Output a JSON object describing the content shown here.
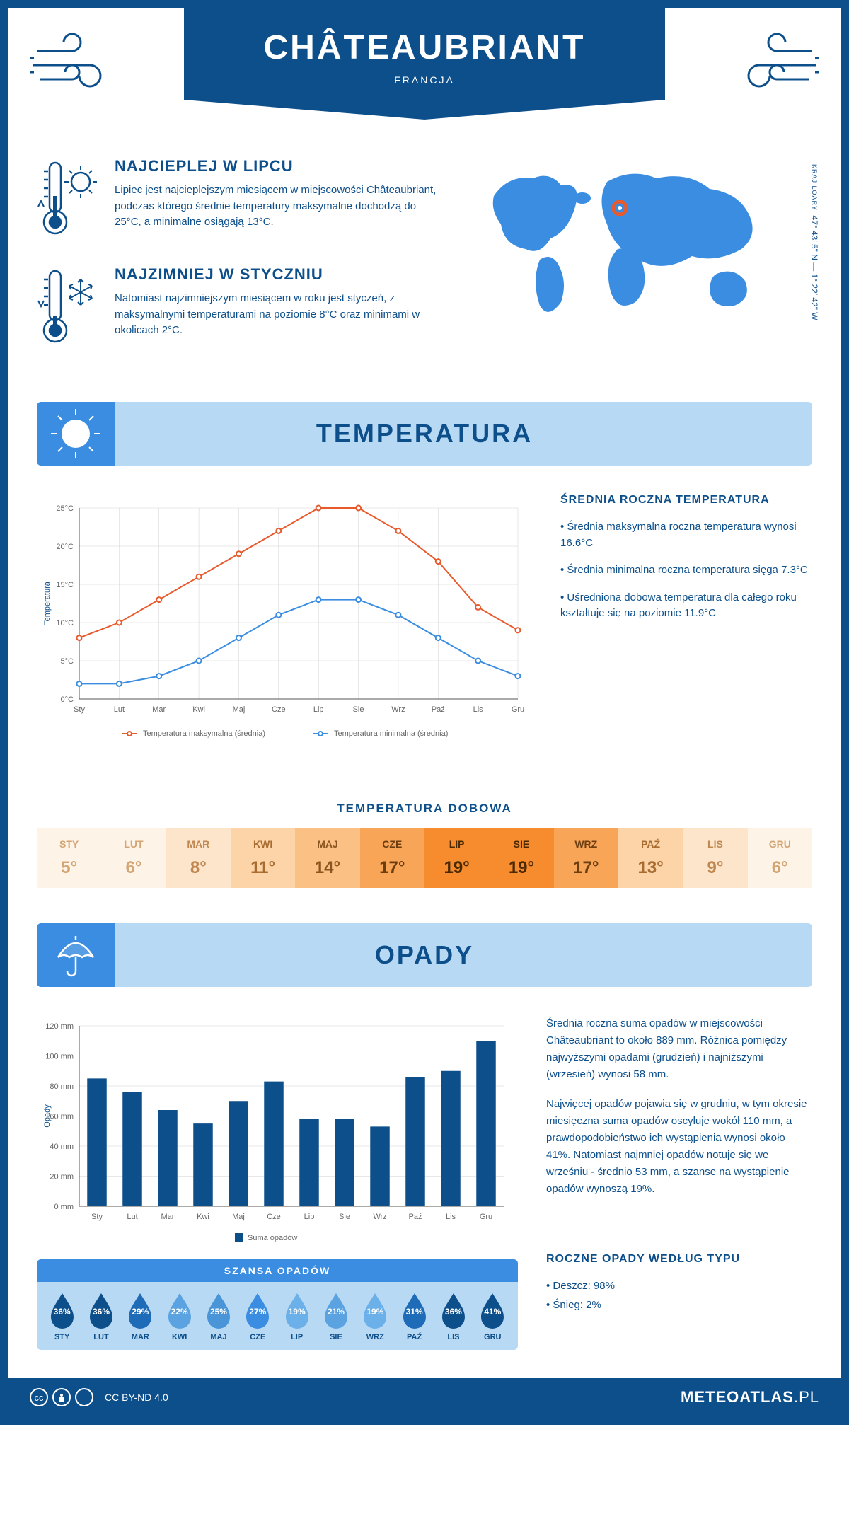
{
  "header": {
    "city": "CHÂTEAUBRIANT",
    "country": "FRANCJA"
  },
  "coords": {
    "text": "47° 43' 5\" N — 1° 22' 42\" W",
    "region": "KRAJ LOARY"
  },
  "facts": {
    "hot": {
      "title": "NAJCIEPLEJ W LIPCU",
      "text": "Lipiec jest najcieplejszym miesiącem w miejscowości Châteaubriant, podczas którego średnie temperatury maksymalne dochodzą do 25°C, a minimalne osiągają 13°C."
    },
    "cold": {
      "title": "NAJZIMNIEJ W STYCZNIU",
      "text": "Natomiast najzimniejszym miesiącem w roku jest styczeń, z maksymalnymi temperaturami na poziomie 8°C oraz minimami w okolicach 2°C."
    }
  },
  "temperature": {
    "section_title": "TEMPERATURA",
    "chart": {
      "type": "line",
      "months": [
        "Sty",
        "Lut",
        "Mar",
        "Kwi",
        "Maj",
        "Cze",
        "Lip",
        "Sie",
        "Wrz",
        "Paź",
        "Lis",
        "Gru"
      ],
      "series_max": {
        "label": "Temperatura maksymalna (średnia)",
        "color": "#e85a2c",
        "values": [
          8,
          10,
          13,
          16,
          19,
          22,
          25,
          25,
          22,
          18,
          12,
          9
        ]
      },
      "series_min": {
        "label": "Temperatura minimalna (średnia)",
        "color": "#3a8de0",
        "values": [
          2,
          2,
          3,
          5,
          8,
          11,
          13,
          13,
          11,
          8,
          5,
          3
        ]
      },
      "ylim": [
        0,
        25
      ],
      "ytick_step": 5,
      "y_unit": "°C",
      "ylabel": "Temperatura",
      "background": "#ffffff",
      "grid_color": "#d0d0d0"
    },
    "info_title": "ŚREDNIA ROCZNA TEMPERATURA",
    "bullets": [
      "• Średnia maksymalna roczna temperatura wynosi 16.6°C",
      "• Średnia minimalna roczna temperatura sięga 7.3°C",
      "• Uśredniona dobowa temperatura dla całego roku kształtuje się na poziomie 11.9°C"
    ],
    "daily": {
      "title": "TEMPERATURA DOBOWA",
      "months": [
        "STY",
        "LUT",
        "MAR",
        "KWI",
        "MAJ",
        "CZE",
        "LIP",
        "SIE",
        "WRZ",
        "PAŹ",
        "LIS",
        "GRU"
      ],
      "values": [
        "5°",
        "6°",
        "8°",
        "11°",
        "14°",
        "17°",
        "19°",
        "19°",
        "17°",
        "13°",
        "9°",
        "6°"
      ],
      "bg_colors": [
        "#fdf3e6",
        "#fdf3e6",
        "#fde5cc",
        "#fcd4a8",
        "#fbc184",
        "#f9a558",
        "#f68c2e",
        "#f68c2e",
        "#f9a558",
        "#fcd4a8",
        "#fde5cc",
        "#fdf3e6"
      ],
      "text_colors": [
        "#d4a574",
        "#d4a574",
        "#c08850",
        "#a86c30",
        "#8b5520",
        "#6b3e10",
        "#4a2800",
        "#4a2800",
        "#6b3e10",
        "#a86c30",
        "#c08850",
        "#d4a574"
      ]
    }
  },
  "precipitation": {
    "section_title": "OPADY",
    "chart": {
      "type": "bar",
      "months": [
        "Sty",
        "Lut",
        "Mar",
        "Kwi",
        "Maj",
        "Cze",
        "Lip",
        "Sie",
        "Wrz",
        "Paź",
        "Lis",
        "Gru"
      ],
      "values": [
        85,
        76,
        64,
        55,
        70,
        83,
        58,
        58,
        53,
        86,
        90,
        110
      ],
      "bar_color": "#0d4f8b",
      "ylim": [
        0,
        120
      ],
      "ytick_step": 20,
      "y_unit": " mm",
      "ylabel": "Opady",
      "legend_label": "Suma opadów"
    },
    "text1": "Średnia roczna suma opadów w miejscowości Châteaubriant to około 889 mm. Różnica pomiędzy najwyższymi opadami (grudzień) i najniższymi (wrzesień) wynosi 58 mm.",
    "text2": "Najwięcej opadów pojawia się w grudniu, w tym okresie miesięczna suma opadów oscyluje wokół 110 mm, a prawdopodobieństwo ich wystąpienia wynosi około 41%. Natomiast najmniej opadów notuje się we wrześniu - średnio 53 mm, a szanse na wystąpienie opadów wynoszą 19%.",
    "chance": {
      "title": "SZANSA OPADÓW",
      "months": [
        "STY",
        "LUT",
        "MAR",
        "KWI",
        "MAJ",
        "CZE",
        "LIP",
        "SIE",
        "WRZ",
        "PAŹ",
        "LIS",
        "GRU"
      ],
      "values": [
        "36%",
        "36%",
        "29%",
        "22%",
        "25%",
        "27%",
        "19%",
        "21%",
        "19%",
        "31%",
        "36%",
        "41%"
      ],
      "colors": [
        "#0d4f8b",
        "#0d4f8b",
        "#1e6bb8",
        "#5ba3e0",
        "#4a95d8",
        "#3a8de0",
        "#6bb0e8",
        "#5ba3e0",
        "#6bb0e8",
        "#1e6bb8",
        "#0d4f8b",
        "#0d4f8b"
      ]
    },
    "by_type": {
      "title": "ROCZNE OPADY WEDŁUG TYPU",
      "rain": "• Deszcz: 98%",
      "snow": "• Śnieg: 2%"
    }
  },
  "footer": {
    "license": "CC BY-ND 4.0",
    "brand_bold": "METEOATLAS",
    "brand_suffix": ".PL"
  }
}
